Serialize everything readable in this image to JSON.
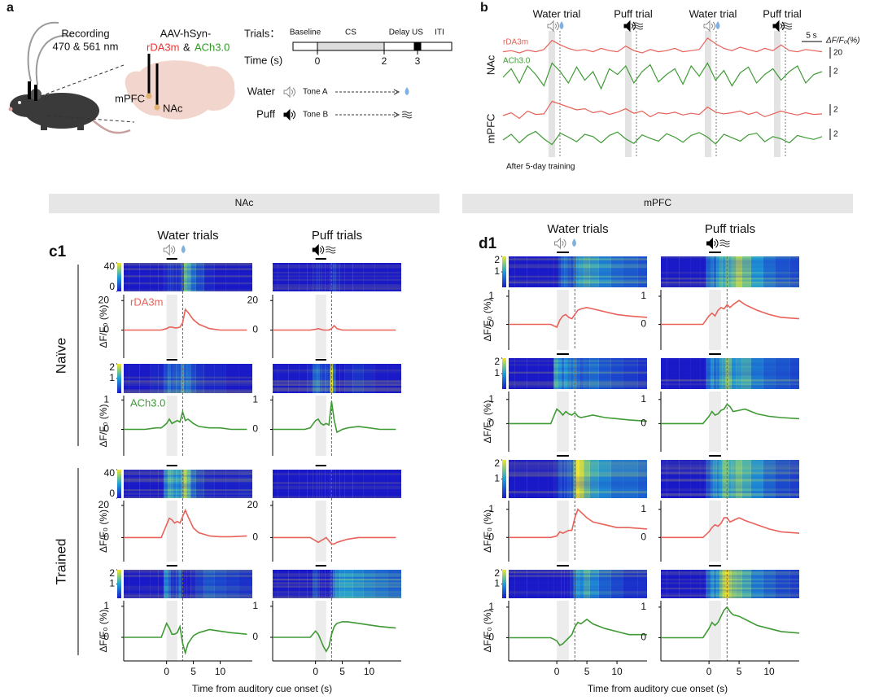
{
  "panel_a": {
    "label": "a",
    "recording": [
      "Recording",
      "470 & 561 nm"
    ],
    "virus": "AAV-hSyn-",
    "sensors": [
      "rDA3m",
      "&",
      "ACh3.0"
    ],
    "regions": [
      "mPFC",
      "NAc"
    ],
    "timeline": {
      "title": "Trials：",
      "segments": [
        "Baseline",
        "CS",
        "Delay",
        "US",
        "ITI"
      ],
      "axis": "Time (s)",
      "ticks": [
        0,
        2,
        3
      ]
    },
    "trials": [
      {
        "name": "Water",
        "tone": "Tone A"
      },
      {
        "name": "Puff",
        "tone": "Tone B"
      }
    ]
  },
  "panel_b": {
    "label": "b",
    "trials": [
      "Water trial",
      "Puff trial",
      "Water trial",
      "Puff trial"
    ],
    "regions": [
      "NAc",
      "mPFC"
    ],
    "time_scale": "5 s",
    "unit": "ΔF/F₀(%)",
    "note": "After 5-day training",
    "series": [
      {
        "name": "rDA3m",
        "color": "#e8625a",
        "scale": 20,
        "values": [
          12,
          14,
          10,
          15,
          12,
          16,
          32,
          24,
          18,
          14,
          16,
          12,
          18,
          14,
          12,
          22,
          14,
          10,
          16,
          12,
          14,
          18,
          12,
          14,
          16,
          36,
          26,
          18,
          14,
          20,
          16,
          12,
          18,
          14,
          24,
          14,
          12,
          16,
          14,
          12
        ]
      },
      {
        "name": "ACh3.0",
        "color": "#3f9a35",
        "scale": 2,
        "values": [
          0,
          1.5,
          -1,
          2,
          0.5,
          -1.5,
          2.5,
          1,
          -1,
          1.8,
          -0.5,
          1,
          -2,
          1.5,
          0.5,
          2,
          -1,
          1,
          2.2,
          -0.8,
          0.5,
          1.5,
          -1.2,
          2,
          0.2,
          2.5,
          -0.5,
          1.2,
          -1.5,
          0.8,
          1.8,
          -1,
          0.5,
          1.5,
          -0.5,
          1,
          2,
          -1,
          0.5,
          1
        ]
      },
      {
        "color": "#e8625a",
        "scale": 2,
        "values": [
          0,
          0.5,
          -0.5,
          0.8,
          0.2,
          0.3,
          2.5,
          2,
          1.5,
          1,
          1.2,
          0.5,
          0.8,
          0.2,
          0.6,
          1.2,
          0.4,
          0.8,
          -0.2,
          0.5,
          0.3,
          0.6,
          0.1,
          0.4,
          0.2,
          1.5,
          0.6,
          0.3,
          0.5,
          0.8,
          0.2,
          0.6,
          -0.2,
          0.3,
          0.8,
          0.4,
          0.1,
          0.5,
          0.2,
          0.3
        ]
      },
      {
        "color": "#3f9a35",
        "scale": 2,
        "values": [
          0,
          1,
          -0.5,
          0.8,
          1.5,
          0.2,
          -0.8,
          1.2,
          0.5,
          -0.3,
          1,
          0.6,
          -0.5,
          0.8,
          1.4,
          0.2,
          -0.6,
          0.9,
          0.3,
          -0.2,
          1.1,
          0.5,
          -0.4,
          0.8,
          1.3,
          0.5,
          -0.7,
          1,
          0.4,
          -0.2,
          0.9,
          1.2,
          -0.3,
          0.6,
          0.2,
          -0.5,
          0.8,
          0.4,
          0.1,
          0.6
        ]
      }
    ]
  },
  "sections": [
    "NAc",
    "mPFC"
  ],
  "panel_c1": {
    "label": "c1",
    "columns": [
      "Water trials",
      "Puff trials"
    ],
    "groups": [
      "Naïve",
      "Trained"
    ],
    "ylabel": "ΔF/F₀ (%)",
    "xlabel": "Time from auditory cue onset (s)"
  },
  "panel_d1": {
    "label": "d1",
    "columns": [
      "Water trials",
      "Puff trials"
    ],
    "ylabel": "ΔF/F₀ (%)",
    "xlabel": "Time from auditory cue onset (s)"
  },
  "chart_data": [
    {
      "type": "line",
      "label": "rDA3m",
      "color": "#e8625a",
      "x": [
        -8,
        -6,
        -4,
        -2,
        -1,
        0,
        0.5,
        1,
        1.5,
        2,
        2.5,
        3,
        3.5,
        4,
        5,
        6,
        8,
        10,
        12,
        15
      ],
      "values": [
        0,
        0,
        0,
        0,
        0,
        1,
        2,
        2,
        1.5,
        1.5,
        2,
        5,
        14,
        12,
        7,
        4,
        1,
        0,
        0,
        0
      ],
      "xlim": [
        -8,
        16
      ],
      "ylim": [
        -19,
        24
      ],
      "yticks": [
        0,
        20
      ],
      "clim": [
        0,
        40
      ],
      "cticks": [
        0,
        40
      ]
    },
    {
      "type": "line",
      "color": "#e8625a",
      "x": [
        -8,
        -6,
        -4,
        -2,
        -1,
        0,
        0.5,
        1,
        1.5,
        2,
        2.5,
        3,
        3.5,
        4,
        5,
        6,
        8,
        10,
        12,
        15
      ],
      "values": [
        0,
        0,
        0,
        0,
        0,
        0.5,
        1,
        0.5,
        0,
        0,
        0,
        1,
        3,
        1,
        0,
        0,
        0,
        0,
        0,
        0
      ],
      "xlim": [
        -8,
        16
      ],
      "ylim": [
        -19,
        24
      ],
      "yticks": [
        0,
        20
      ]
    },
    {
      "type": "line",
      "label": "ACh3.0",
      "color": "#3f9a35",
      "x": [
        -8,
        -6,
        -4,
        -2,
        -1,
        0,
        0.5,
        1,
        1.5,
        2,
        2.5,
        3,
        3.5,
        4,
        5,
        6,
        8,
        10,
        12,
        15
      ],
      "values": [
        0,
        0,
        0,
        0.05,
        0.05,
        0.2,
        0.35,
        0.2,
        0.25,
        0.3,
        0.25,
        0.6,
        0.3,
        0.35,
        0.2,
        0.1,
        0.05,
        0.05,
        0,
        0
      ],
      "xlim": [
        -8,
        16
      ],
      "ylim": [
        -0.9,
        1.15
      ],
      "yticks": [
        0,
        1
      ],
      "clim": [
        0,
        2
      ],
      "cticks": [
        1,
        2
      ]
    },
    {
      "type": "line",
      "color": "#3f9a35",
      "x": [
        -8,
        -6,
        -4,
        -2,
        -1,
        0,
        0.5,
        1,
        1.5,
        2,
        2.5,
        3,
        3.5,
        4,
        5,
        6,
        8,
        10,
        12,
        15
      ],
      "values": [
        0,
        0,
        0,
        0,
        0.05,
        0.3,
        0.35,
        0.2,
        0.15,
        0.2,
        0.15,
        0.95,
        0.3,
        -0.1,
        0,
        0.05,
        0.1,
        0.05,
        0,
        0
      ],
      "xlim": [
        -8,
        16
      ],
      "ylim": [
        -0.9,
        1.15
      ],
      "yticks": [
        0,
        1
      ]
    },
    {
      "type": "line",
      "color": "#e8625a",
      "x": [
        -8,
        -6,
        -4,
        -2,
        -1,
        0,
        0.5,
        1,
        1.5,
        2,
        2.5,
        3,
        3.5,
        4,
        5,
        6,
        8,
        10,
        12,
        15
      ],
      "values": [
        0,
        0,
        0,
        0,
        0,
        8,
        12,
        11,
        9,
        10,
        9,
        13,
        17,
        13,
        6,
        3,
        1,
        0.5,
        0.5,
        1
      ],
      "xlim": [
        -8,
        16
      ],
      "ylim": [
        -15,
        23
      ],
      "yticks": [
        0,
        20
      ],
      "clim": [
        0,
        40
      ],
      "cticks": [
        0,
        40
      ]
    },
    {
      "type": "line",
      "color": "#e8625a",
      "x": [
        -8,
        -6,
        -4,
        -2,
        -1,
        0,
        0.5,
        1,
        1.5,
        2,
        2.5,
        3,
        3.5,
        4,
        5,
        6,
        8,
        10,
        12,
        15
      ],
      "values": [
        0,
        0,
        0,
        0,
        0,
        -2,
        -3,
        -2,
        -1,
        0,
        -2,
        -4,
        -4,
        -3,
        -2,
        -1,
        0,
        0,
        0,
        0
      ],
      "xlim": [
        -8,
        16
      ],
      "ylim": [
        -15,
        23
      ],
      "yticks": [
        0,
        20
      ]
    },
    {
      "type": "line",
      "color": "#3f9a35",
      "x": [
        -8,
        -6,
        -4,
        -2,
        -1,
        0,
        0.5,
        1,
        1.5,
        2,
        2.5,
        3,
        3.5,
        4,
        5,
        6,
        8,
        10,
        12,
        15
      ],
      "values": [
        0,
        0,
        0,
        0,
        0,
        0.45,
        0.3,
        0.1,
        0.1,
        0.15,
        0.35,
        -0.2,
        -0.5,
        -0.2,
        0.05,
        0.15,
        0.25,
        0.2,
        0.15,
        0.1
      ],
      "xlim": [
        -8,
        16
      ],
      "ylim": [
        -0.76,
        1.18
      ],
      "yticks": [
        0,
        1
      ],
      "xticks": [
        0,
        5,
        10
      ],
      "clim": [
        0,
        2
      ],
      "cticks": [
        1,
        2
      ]
    },
    {
      "type": "line",
      "color": "#3f9a35",
      "x": [
        -8,
        -6,
        -4,
        -2,
        -1,
        0,
        0.5,
        1,
        1.5,
        2,
        2.5,
        3,
        3.5,
        4,
        5,
        6,
        8,
        10,
        12,
        15
      ],
      "values": [
        0,
        0,
        0,
        0,
        0,
        0.2,
        0.1,
        -0.1,
        -0.3,
        -0.45,
        -0.3,
        0.1,
        0.35,
        0.45,
        0.5,
        0.5,
        0.45,
        0.4,
        0.35,
        0.3
      ],
      "xlim": [
        -8,
        16
      ],
      "ylim": [
        -0.76,
        1.18
      ],
      "yticks": [
        0,
        1
      ],
      "xticks": [
        0,
        5,
        10
      ]
    },
    {
      "type": "line",
      "color": "#e8625a",
      "x": [
        -8,
        -6,
        -4,
        -2,
        -1,
        0,
        0.5,
        1,
        1.5,
        2,
        2.5,
        3,
        3.5,
        4,
        5,
        6,
        8,
        10,
        12,
        15
      ],
      "values": [
        0,
        0,
        0,
        0,
        0,
        -0.1,
        0.15,
        0.3,
        0.35,
        0.25,
        0.2,
        0.35,
        0.5,
        0.55,
        0.6,
        0.55,
        0.45,
        0.35,
        0.3,
        0.25
      ],
      "xlim": [
        -8,
        15
      ],
      "ylim": [
        -0.91,
        1.23
      ],
      "yticks": [
        0,
        1
      ],
      "clim": [
        0,
        2
      ],
      "cticks": [
        1,
        2
      ]
    },
    {
      "type": "line",
      "color": "#e8625a",
      "x": [
        -8,
        -6,
        -4,
        -2,
        -1,
        0,
        0.5,
        1,
        1.5,
        2,
        2.5,
        3,
        3.5,
        4,
        5,
        6,
        8,
        10,
        12,
        15
      ],
      "values": [
        0,
        0,
        0,
        0,
        0,
        0.3,
        0.4,
        0.3,
        0.5,
        0.6,
        0.55,
        0.7,
        0.6,
        0.7,
        0.85,
        0.7,
        0.5,
        0.35,
        0.25,
        0.2
      ],
      "xlim": [
        -8,
        15
      ],
      "ylim": [
        -0.91,
        1.23
      ],
      "yticks": [
        0,
        1
      ]
    },
    {
      "type": "line",
      "color": "#3f9a35",
      "x": [
        -8,
        -6,
        -4,
        -2,
        -1,
        0,
        0.5,
        1,
        1.5,
        2,
        2.5,
        3,
        3.5,
        4,
        5,
        6,
        8,
        10,
        12,
        15
      ],
      "values": [
        0,
        0,
        0,
        0,
        0,
        0.6,
        0.5,
        0.35,
        0.5,
        0.4,
        0.35,
        0.45,
        0.3,
        0.25,
        0.3,
        0.35,
        0.25,
        0.2,
        0.15,
        0.1
      ],
      "xlim": [
        -8,
        15
      ],
      "ylim": [
        -1.17,
        1.33
      ],
      "yticks": [
        0,
        1
      ],
      "clim": [
        0,
        2
      ],
      "cticks": [
        1,
        2
      ]
    },
    {
      "type": "line",
      "color": "#3f9a35",
      "x": [
        -8,
        -6,
        -4,
        -2,
        -1,
        0,
        0.5,
        1,
        1.5,
        2,
        2.5,
        3,
        3.5,
        4,
        5,
        6,
        8,
        10,
        12,
        15
      ],
      "values": [
        0,
        0,
        0,
        0,
        0,
        0.3,
        0.5,
        0.35,
        0.4,
        0.55,
        0.6,
        0.8,
        0.7,
        0.5,
        0.55,
        0.6,
        0.4,
        0.3,
        0.25,
        0.2
      ],
      "xlim": [
        -8,
        15
      ],
      "ylim": [
        -1.17,
        1.33
      ],
      "yticks": [
        0,
        1
      ]
    },
    {
      "type": "line",
      "color": "#e8625a",
      "x": [
        -8,
        -6,
        -4,
        -2,
        -1,
        0,
        0.5,
        1,
        1.5,
        2,
        2.5,
        3,
        3.5,
        4,
        5,
        6,
        8,
        10,
        12,
        15
      ],
      "values": [
        0,
        0,
        0,
        0,
        0,
        0.05,
        0.2,
        0.15,
        0.2,
        0.25,
        0.25,
        0.7,
        1.0,
        0.9,
        0.7,
        0.55,
        0.45,
        0.35,
        0.35,
        0.3
      ],
      "xlim": [
        -8,
        15
      ],
      "ylim": [
        -0.86,
        1.31
      ],
      "yticks": [
        0,
        1
      ],
      "clim": [
        0,
        2
      ],
      "cticks": [
        1,
        2
      ]
    },
    {
      "type": "line",
      "color": "#e8625a",
      "x": [
        -8,
        -6,
        -4,
        -2,
        -1,
        0,
        0.5,
        1,
        1.5,
        2,
        2.5,
        3,
        3.5,
        4,
        5,
        6,
        8,
        10,
        12,
        15
      ],
      "values": [
        0,
        0,
        0,
        0,
        0,
        0.2,
        0.35,
        0.45,
        0.4,
        0.5,
        0.7,
        0.7,
        0.55,
        0.6,
        0.7,
        0.6,
        0.45,
        0.3,
        0.2,
        0.15
      ],
      "xlim": [
        -8,
        15
      ],
      "ylim": [
        -0.86,
        1.31
      ],
      "yticks": [
        0,
        1
      ]
    },
    {
      "type": "line",
      "color": "#3f9a35",
      "x": [
        -8,
        -6,
        -4,
        -2,
        -1,
        0,
        0.5,
        1,
        1.5,
        2,
        2.5,
        3,
        3.5,
        4,
        5,
        6,
        8,
        10,
        12,
        15
      ],
      "values": [
        0,
        0,
        0,
        0,
        0,
        -0.1,
        -0.25,
        -0.2,
        -0.1,
        0,
        0.1,
        0.35,
        0.5,
        0.45,
        0.6,
        0.45,
        0.3,
        0.2,
        0.1,
        0.1
      ],
      "xlim": [
        -8,
        15
      ],
      "ylim": [
        -0.76,
        1.21
      ],
      "yticks": [
        0,
        1
      ],
      "xticks": [
        0,
        5,
        10
      ],
      "clim": [
        0,
        2
      ],
      "cticks": [
        1,
        2
      ]
    },
    {
      "type": "line",
      "color": "#3f9a35",
      "x": [
        -8,
        -6,
        -4,
        -2,
        -1,
        0,
        0.5,
        1,
        1.5,
        2,
        2.5,
        3,
        3.5,
        4,
        5,
        6,
        8,
        10,
        12,
        15
      ],
      "values": [
        0,
        0,
        0,
        0,
        0,
        0.3,
        0.5,
        0.4,
        0.5,
        0.7,
        0.9,
        1.0,
        0.85,
        0.75,
        0.7,
        0.6,
        0.4,
        0.3,
        0.2,
        0.15
      ],
      "xlim": [
        -8,
        15
      ],
      "ylim": [
        -0.76,
        1.21
      ],
      "yticks": [
        0,
        1
      ],
      "xticks": [
        0,
        5,
        10
      ]
    }
  ]
}
